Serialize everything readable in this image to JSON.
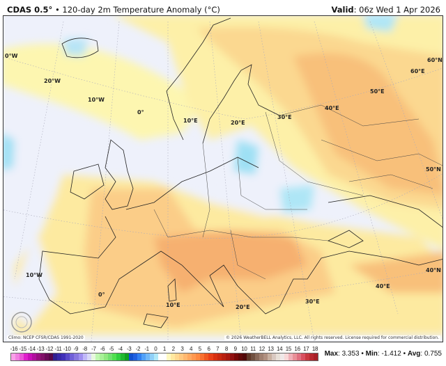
{
  "header": {
    "model": "CDAS 0.5°",
    "separator": "•",
    "title": "120-day 2m Temperature Anomaly (°C)",
    "valid_label": "Valid",
    "valid_value": ": 06z Wed 1 Apr 2026"
  },
  "map": {
    "grid_labels": [
      "0°W",
      "20°W",
      "10°W",
      "0°",
      "10°E",
      "20°E",
      "30°E",
      "40°E",
      "50°E",
      "60°E",
      "60°N",
      "50°N",
      "40°N",
      "10°W",
      "0°",
      "10°E",
      "20°E",
      "30°E",
      "40°E"
    ],
    "ocean_color": "#eef1fb",
    "logo_text": "WeatherBELL",
    "climo_note": "Climo: NCEP CFSR/CDAS 1991-2020",
    "copyright": "© 2026 WeatherBELL Analytics, LLC. All rights reserved. License required for commercial distribution."
  },
  "colorbar": {
    "ticks": [
      "-16",
      "-15",
      "-14",
      "-13",
      "-12",
      "-11",
      "-10",
      "-9",
      "-8",
      "-7",
      "-6",
      "-5",
      "-4",
      "-3",
      "-2",
      "-1",
      "0",
      "1",
      "2",
      "3",
      "4",
      "5",
      "6",
      "7",
      "8",
      "9",
      "10",
      "11",
      "12",
      "13",
      "14",
      "15",
      "16",
      "17",
      "18"
    ],
    "colors": [
      "#f9a0e8",
      "#f07ee0",
      "#ea55d8",
      "#e020cc",
      "#c810b8",
      "#b0109e",
      "#981080",
      "#801068",
      "#6a0a58",
      "#580848",
      "#302090",
      "#3828a8",
      "#4030b8",
      "#5848c8",
      "#7060d8",
      "#8878e0",
      "#a090f0",
      "#c0b8f8",
      "#d8d8f8",
      "#e8f8e0",
      "#c0f8b0",
      "#a8f098",
      "#90e880",
      "#70e070",
      "#50e050",
      "#30d040",
      "#20b830",
      "#10a020",
      "#1050d0",
      "#2060e0",
      "#3080f0",
      "#50a0f8",
      "#70b8f8",
      "#90d0f8",
      "#b0e8f8",
      "#ffffff",
      "#ffffff",
      "#fff8c0",
      "#ffe8a0",
      "#ffd890",
      "#ffc880",
      "#ffb870",
      "#ffa860",
      "#ff9850",
      "#ff8840",
      "#f87030",
      "#f05820",
      "#e84018",
      "#d83010",
      "#c82810",
      "#b82010",
      "#a81810",
      "#901010",
      "#780808",
      "#600808",
      "#500808",
      "#603828",
      "#705040",
      "#886858",
      "#a08070",
      "#b09080",
      "#c8b0a0",
      "#d8c8c0",
      "#e8e0d8",
      "#f0e8e8",
      "#f8d8d8",
      "#f0b0b8",
      "#e89098",
      "#e07080",
      "#d85060",
      "#c83840",
      "#b82830",
      "#a82028"
    ]
  },
  "stats": {
    "max_label": "Max",
    "max_value": ": 3.353",
    "min_label": "Min",
    "min_value": ": -1.412",
    "avg_label": "Avg",
    "avg_value": ": 0.755",
    "sep": " • "
  }
}
